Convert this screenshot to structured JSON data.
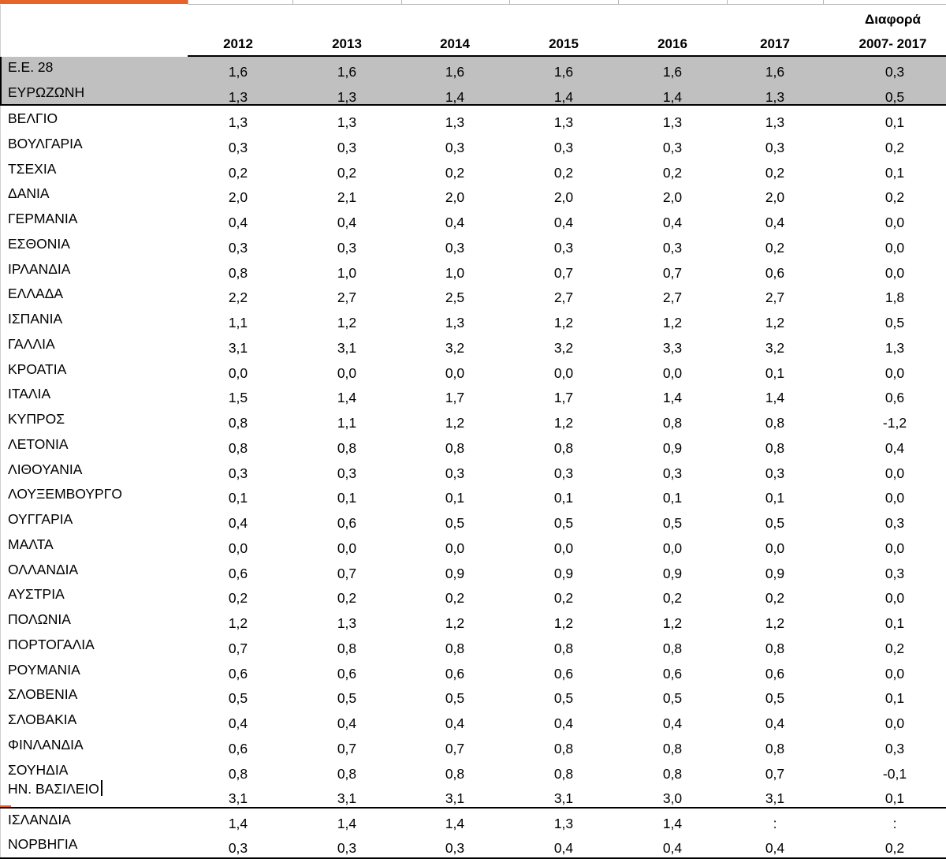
{
  "table": {
    "header": {
      "years": [
        "2012",
        "2013",
        "2014",
        "2015",
        "2016",
        "2017"
      ],
      "diff_line1": "Διαφορά",
      "diff_line2": "2007- 2017"
    },
    "summary_rows": [
      {
        "name": "Ε.Ε. 28",
        "values": [
          "1,6",
          "1,6",
          "1,6",
          "1,6",
          "1,6",
          "1,6",
          "0,3"
        ]
      },
      {
        "name": "ΕΥΡΩΖΩΝΗ",
        "values": [
          "1,3",
          "1,3",
          "1,4",
          "1,4",
          "1,4",
          "1,3",
          "0,5"
        ]
      }
    ],
    "country_rows": [
      {
        "name": "ΒΕΛΓΙΟ",
        "values": [
          "1,3",
          "1,3",
          "1,3",
          "1,3",
          "1,3",
          "1,3",
          "0,1"
        ]
      },
      {
        "name": "ΒΟΥΛΓΑΡΙΑ",
        "values": [
          "0,3",
          "0,3",
          "0,3",
          "0,3",
          "0,3",
          "0,3",
          "0,2"
        ]
      },
      {
        "name": "ΤΣΕΧΙΑ",
        "values": [
          "0,2",
          "0,2",
          "0,2",
          "0,2",
          "0,2",
          "0,2",
          "0,1"
        ]
      },
      {
        "name": "ΔΑΝΙΑ",
        "values": [
          "2,0",
          "2,1",
          "2,0",
          "2,0",
          "2,0",
          "2,0",
          "0,2"
        ]
      },
      {
        "name": "ΓΕΡΜΑΝΙΑ",
        "values": [
          "0,4",
          "0,4",
          "0,4",
          "0,4",
          "0,4",
          "0,4",
          "0,0"
        ]
      },
      {
        "name": "ΕΣΘΟΝΙΑ",
        "values": [
          "0,3",
          "0,3",
          "0,3",
          "0,3",
          "0,3",
          "0,2",
          "0,0"
        ]
      },
      {
        "name": "ΙΡΛΑΝΔΙΑ",
        "values": [
          "0,8",
          "1,0",
          "1,0",
          "0,7",
          "0,7",
          "0,6",
          "0,0"
        ]
      },
      {
        "name": "ΕΛΛΑΔΑ",
        "values": [
          "2,2",
          "2,7",
          "2,5",
          "2,7",
          "2,7",
          "2,7",
          "1,8"
        ]
      },
      {
        "name": "ΙΣΠΑΝΙΑ",
        "values": [
          "1,1",
          "1,2",
          "1,3",
          "1,2",
          "1,2",
          "1,2",
          "0,5"
        ]
      },
      {
        "name": "ΓΑΛΛΙΑ",
        "values": [
          "3,1",
          "3,1",
          "3,2",
          "3,2",
          "3,3",
          "3,2",
          "1,3"
        ]
      },
      {
        "name": "ΚΡΟΑΤΙΑ",
        "values": [
          "0,0",
          "0,0",
          "0,0",
          "0,0",
          "0,0",
          "0,1",
          "0,0"
        ]
      },
      {
        "name": "ΙΤΑΛΙΑ",
        "values": [
          "1,5",
          "1,4",
          "1,7",
          "1,7",
          "1,4",
          "1,4",
          "0,6"
        ]
      },
      {
        "name": "ΚΥΠΡΟΣ",
        "values": [
          "0,8",
          "1,1",
          "1,2",
          "1,2",
          "0,8",
          "0,8",
          "-1,2"
        ]
      },
      {
        "name": "ΛΕΤΟΝΙΑ",
        "values": [
          "0,8",
          "0,8",
          "0,8",
          "0,8",
          "0,9",
          "0,8",
          "0,4"
        ]
      },
      {
        "name": "ΛΙΘΟΥΑΝΙΑ",
        "values": [
          "0,3",
          "0,3",
          "0,3",
          "0,3",
          "0,3",
          "0,3",
          "0,0"
        ]
      },
      {
        "name": "ΛΟΥΞΕΜΒΟΥΡΓΟ",
        "values": [
          "0,1",
          "0,1",
          "0,1",
          "0,1",
          "0,1",
          "0,1",
          "0,0"
        ]
      },
      {
        "name": "ΟΥΓΓΑΡΙΑ",
        "values": [
          "0,4",
          "0,6",
          "0,5",
          "0,5",
          "0,5",
          "0,5",
          "0,3"
        ]
      },
      {
        "name": "ΜΑΛΤΑ",
        "values": [
          "0,0",
          "0,0",
          "0,0",
          "0,0",
          "0,0",
          "0,0",
          "0,0"
        ]
      },
      {
        "name": "ΟΛΛΑΝΔΙΑ",
        "values": [
          "0,6",
          "0,7",
          "0,9",
          "0,9",
          "0,9",
          "0,9",
          "0,3"
        ]
      },
      {
        "name": "ΑΥΣΤΡΙΑ",
        "values": [
          "0,2",
          "0,2",
          "0,2",
          "0,2",
          "0,2",
          "0,2",
          "0,0"
        ]
      },
      {
        "name": "ΠΟΛΩΝΙΑ",
        "values": [
          "1,2",
          "1,3",
          "1,2",
          "1,2",
          "1,2",
          "1,2",
          "0,1"
        ]
      },
      {
        "name": "ΠΟΡΤΟΓΑΛΙΑ",
        "values": [
          "0,7",
          "0,8",
          "0,8",
          "0,8",
          "0,8",
          "0,8",
          "0,2"
        ]
      },
      {
        "name": "ΡΟΥΜΑΝΙΑ",
        "values": [
          "0,6",
          "0,6",
          "0,6",
          "0,6",
          "0,6",
          "0,6",
          "0,0"
        ]
      },
      {
        "name": "ΣΛΟΒΕΝΙΑ",
        "values": [
          "0,5",
          "0,5",
          "0,5",
          "0,5",
          "0,5",
          "0,5",
          "0,1"
        ]
      },
      {
        "name": "ΣΛΟΒΑΚΙΑ",
        "values": [
          "0,4",
          "0,4",
          "0,4",
          "0,4",
          "0,4",
          "0,4",
          "0,0"
        ]
      },
      {
        "name": "ΦΙΝΛΑΝΔΙΑ",
        "values": [
          "0,6",
          "0,7",
          "0,7",
          "0,8",
          "0,8",
          "0,8",
          "0,3"
        ]
      },
      {
        "name": "ΣΟΥΗΔΙΑ",
        "values": [
          "0,8",
          "0,8",
          "0,8",
          "0,8",
          "0,8",
          "0,7",
          "-0,1"
        ]
      },
      {
        "name": "ΗΝ. ΒΑΣΙΛΕΙΟ",
        "values": [
          "3,1",
          "3,1",
          "3,1",
          "3,1",
          "3,0",
          "3,1",
          "0,1"
        ]
      }
    ],
    "extra_rows": [
      {
        "name": "ΙΣΛΑΝΔΙΑ",
        "values": [
          "1,4",
          "1,4",
          "1,4",
          "1,3",
          "1,4",
          ":",
          ":"
        ]
      },
      {
        "name": "ΝΟΡΒΗΓΙΑ",
        "values": [
          "0,3",
          "0,3",
          "0,3",
          "0,4",
          "0,4",
          "0,4",
          "0,2"
        ]
      }
    ]
  },
  "colors": {
    "summary_shade": "#c0c0c0",
    "accent_orange": "#e8632a"
  }
}
